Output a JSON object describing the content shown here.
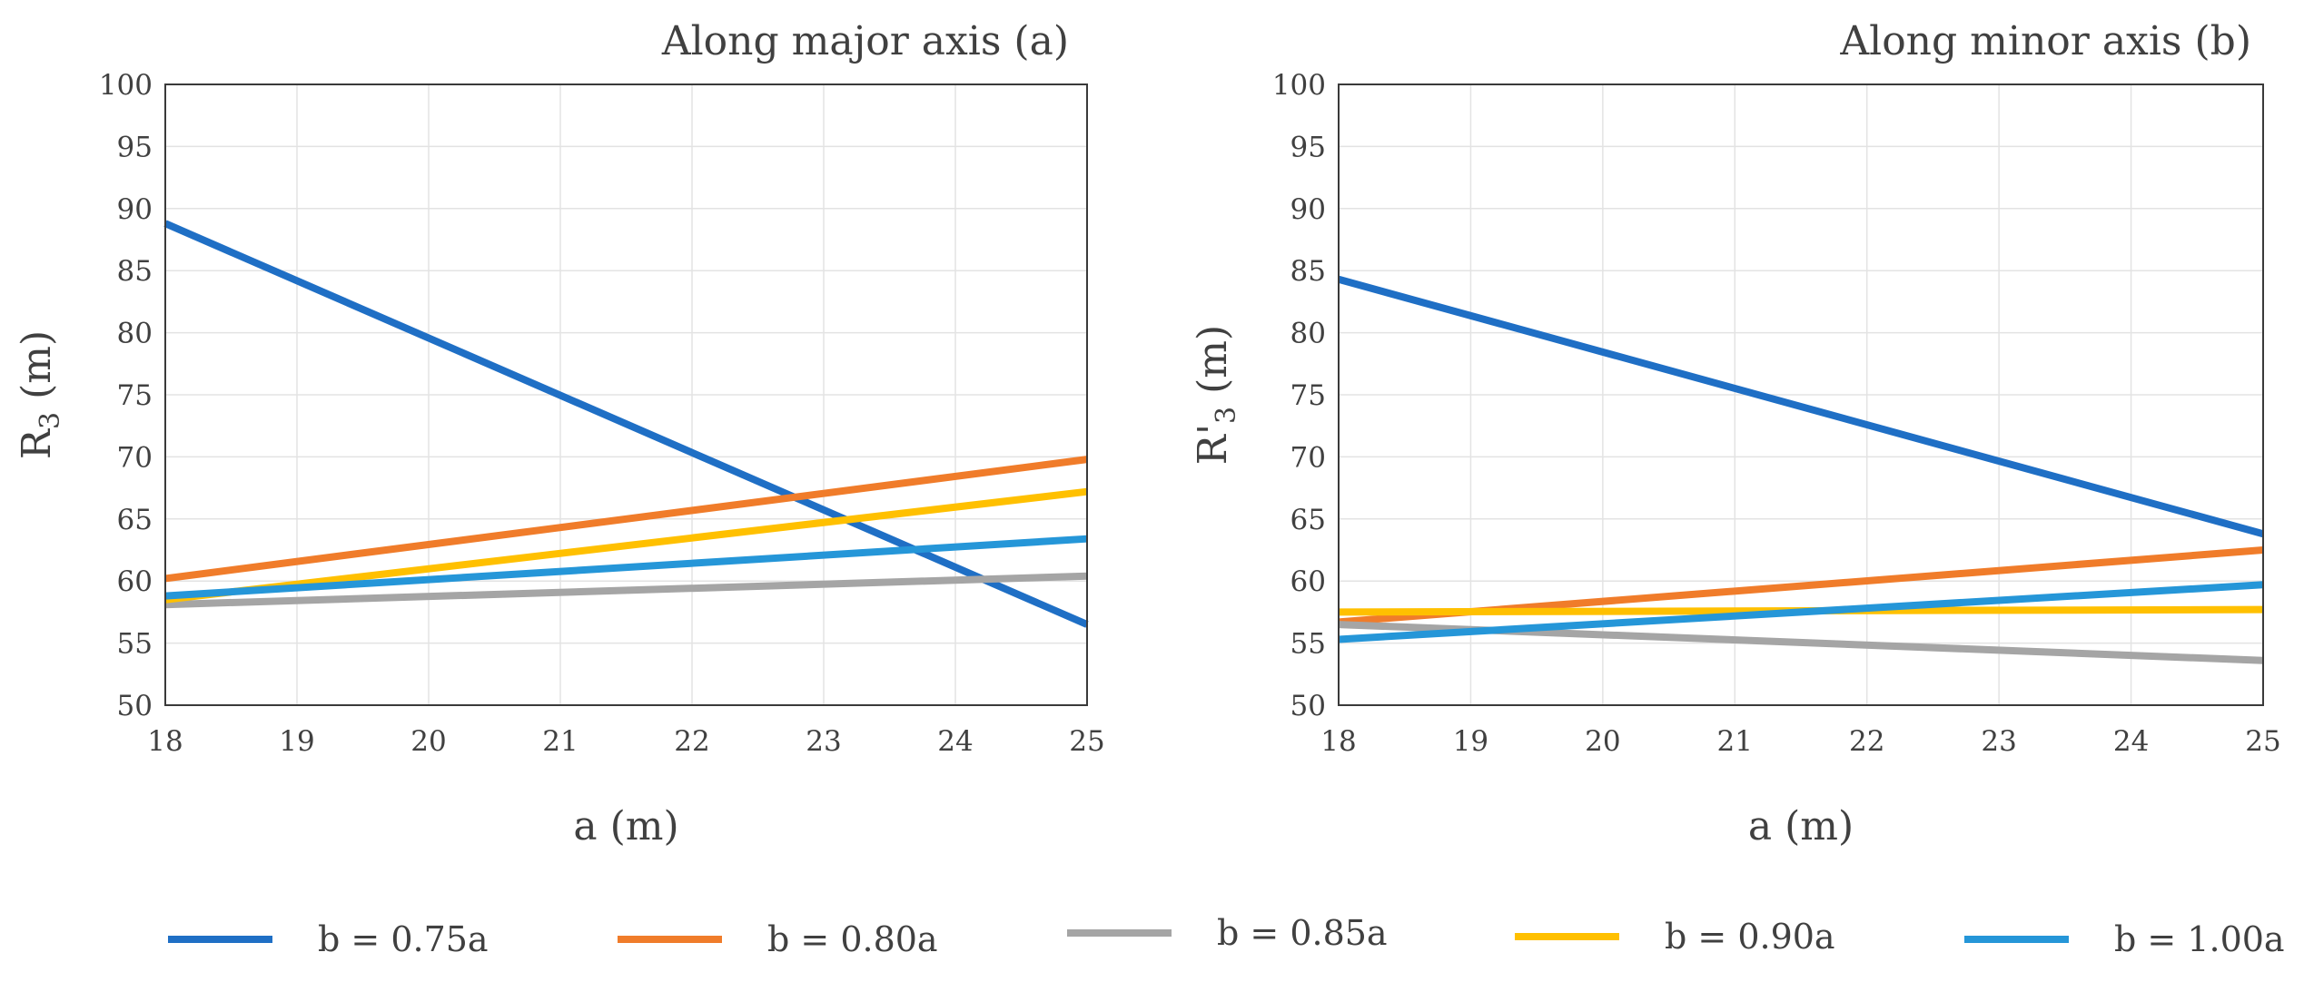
{
  "chart_data": [
    {
      "type": "line",
      "title": "Along major axis (a)",
      "xlabel": "a (m)",
      "ylabel_main": "R",
      "ylabel_sub": "3",
      "ylabel_unit": " (m)",
      "xlim": [
        18,
        25
      ],
      "ylim": [
        50,
        100
      ],
      "xticks": [
        "18",
        "19",
        "20",
        "21",
        "22",
        "23",
        "24",
        "25"
      ],
      "yticks": [
        "50",
        "55",
        "60",
        "65",
        "70",
        "75",
        "80",
        "85",
        "90",
        "95",
        "100"
      ],
      "grid": true,
      "x": [
        18,
        25
      ],
      "series": [
        {
          "name": "b = 0.75a",
          "color": "#1f6fc5",
          "values": [
            88.8,
            56.5
          ]
        },
        {
          "name": "b = 0.80a",
          "color": "#f07c2a",
          "values": [
            60.2,
            69.8
          ]
        },
        {
          "name": "b = 0.85a",
          "color": "#a5a5a5",
          "values": [
            58.1,
            60.4
          ]
        },
        {
          "name": "b = 0.90a",
          "color": "#ffc000",
          "values": [
            58.5,
            67.2
          ]
        },
        {
          "name": "b = 1.00a",
          "color": "#2596d8",
          "values": [
            58.8,
            63.4
          ]
        }
      ]
    },
    {
      "type": "line",
      "title": "Along minor axis (b)",
      "xlabel": "a (m)",
      "ylabel_main": "R'",
      "ylabel_sub": "3",
      "ylabel_unit": " (m)",
      "xlim": [
        18,
        25
      ],
      "ylim": [
        50,
        100
      ],
      "xticks": [
        "18",
        "19",
        "20",
        "21",
        "22",
        "23",
        "24",
        "25"
      ],
      "yticks": [
        "50",
        "55",
        "60",
        "65",
        "70",
        "75",
        "80",
        "85",
        "90",
        "95",
        "100"
      ],
      "grid": true,
      "x": [
        18,
        25
      ],
      "series": [
        {
          "name": "b = 0.75a",
          "color": "#1f6fc5",
          "values": [
            84.3,
            63.8
          ]
        },
        {
          "name": "b = 0.80a",
          "color": "#f07c2a",
          "values": [
            56.7,
            62.5
          ]
        },
        {
          "name": "b = 0.85a",
          "color": "#a5a5a5",
          "values": [
            56.5,
            53.6
          ]
        },
        {
          "name": "b = 0.90a",
          "color": "#ffc000",
          "values": [
            57.5,
            57.7
          ]
        },
        {
          "name": "b = 1.00a",
          "color": "#2596d8",
          "values": [
            55.3,
            59.7
          ]
        }
      ]
    }
  ],
  "legend": {
    "placement": "bottom",
    "entries": [
      {
        "name": "b = 0.75a",
        "color": "#1f6fc5"
      },
      {
        "name": "b = 0.80a",
        "color": "#f07c2a"
      },
      {
        "name": "b = 0.85a",
        "color": "#a5a5a5"
      },
      {
        "name": "b = 0.90a",
        "color": "#ffc000"
      },
      {
        "name": "b = 1.00a",
        "color": "#2596d8"
      }
    ]
  }
}
